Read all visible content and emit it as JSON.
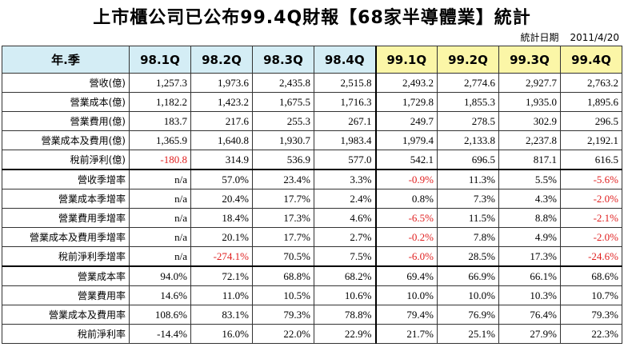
{
  "title": "上市櫃公司已公布99.4Q財報【68家半導體業】統計",
  "date_label": "統計日期",
  "date_value": "2011/4/20",
  "header": {
    "corner": "年.季",
    "quarters": [
      "98.1Q",
      "98.2Q",
      "98.3Q",
      "98.4Q",
      "99.1Q",
      "99.2Q",
      "99.3Q",
      "99.4Q"
    ]
  },
  "colors": {
    "header_98": "#d4edf5",
    "header_99": "#fbf6a7",
    "negative": "#e02020"
  },
  "rows": [
    {
      "label": "營收(億)",
      "values": [
        "1,257.3",
        "1,973.6",
        "2,435.8",
        "2,515.8",
        "2,493.2",
        "2,774.6",
        "2,927.7",
        "2,763.2"
      ],
      "neg": [
        false,
        false,
        false,
        false,
        false,
        false,
        false,
        false
      ]
    },
    {
      "label": "營業成本(億)",
      "values": [
        "1,182.2",
        "1,423.2",
        "1,675.5",
        "1,716.3",
        "1,729.8",
        "1,855.3",
        "1,935.0",
        "1,895.6"
      ],
      "neg": [
        false,
        false,
        false,
        false,
        false,
        false,
        false,
        false
      ]
    },
    {
      "label": "營業費用(億)",
      "values": [
        "183.7",
        "217.6",
        "255.3",
        "267.1",
        "249.7",
        "278.5",
        "302.9",
        "296.5"
      ],
      "neg": [
        false,
        false,
        false,
        false,
        false,
        false,
        false,
        false
      ]
    },
    {
      "label": "營業成本及費用(億)",
      "values": [
        "1,365.9",
        "1,640.8",
        "1,930.7",
        "1,983.4",
        "1,979.4",
        "2,133.8",
        "2,237.8",
        "2,192.1"
      ],
      "neg": [
        false,
        false,
        false,
        false,
        false,
        false,
        false,
        false
      ]
    },
    {
      "label": "稅前淨利(億)",
      "values": [
        "-180.8",
        "314.9",
        "536.9",
        "577.0",
        "542.1",
        "696.5",
        "817.1",
        "616.5"
      ],
      "neg": [
        true,
        false,
        false,
        false,
        false,
        false,
        false,
        false
      ]
    },
    {
      "label": "營收季增率",
      "values": [
        "n/a",
        "57.0%",
        "23.4%",
        "3.3%",
        "-0.9%",
        "11.3%",
        "5.5%",
        "-5.6%"
      ],
      "neg": [
        false,
        false,
        false,
        false,
        true,
        false,
        false,
        true
      ],
      "group_start": true
    },
    {
      "label": "營業成本季增率",
      "values": [
        "n/a",
        "20.4%",
        "17.7%",
        "2.4%",
        "0.8%",
        "7.3%",
        "4.3%",
        "-2.0%"
      ],
      "neg": [
        false,
        false,
        false,
        false,
        false,
        false,
        false,
        true
      ]
    },
    {
      "label": "營業費用季增率",
      "values": [
        "n/a",
        "18.4%",
        "17.3%",
        "4.6%",
        "-6.5%",
        "11.5%",
        "8.8%",
        "-2.1%"
      ],
      "neg": [
        false,
        false,
        false,
        false,
        true,
        false,
        false,
        true
      ]
    },
    {
      "label": "營業成本及費用季增率",
      "values": [
        "n/a",
        "20.1%",
        "17.7%",
        "2.7%",
        "-0.2%",
        "7.8%",
        "4.9%",
        "-2.0%"
      ],
      "neg": [
        false,
        false,
        false,
        false,
        true,
        false,
        false,
        true
      ]
    },
    {
      "label": "稅前淨利季增率",
      "values": [
        "n/a",
        "-274.1%",
        "70.5%",
        "7.5%",
        "-6.0%",
        "28.5%",
        "17.3%",
        "-24.6%"
      ],
      "neg": [
        false,
        true,
        false,
        false,
        true,
        false,
        false,
        true
      ]
    },
    {
      "label": "營業成本率",
      "values": [
        "94.0%",
        "72.1%",
        "68.8%",
        "68.2%",
        "69.4%",
        "66.9%",
        "66.1%",
        "68.6%"
      ],
      "neg": [
        false,
        false,
        false,
        false,
        false,
        false,
        false,
        false
      ],
      "group_start": true
    },
    {
      "label": "營業費用率",
      "values": [
        "14.6%",
        "11.0%",
        "10.5%",
        "10.6%",
        "10.0%",
        "10.0%",
        "10.3%",
        "10.7%"
      ],
      "neg": [
        false,
        false,
        false,
        false,
        false,
        false,
        false,
        false
      ]
    },
    {
      "label": "營業成本及費用率",
      "values": [
        "108.6%",
        "83.1%",
        "79.3%",
        "78.8%",
        "79.4%",
        "76.9%",
        "76.4%",
        "79.3%"
      ],
      "neg": [
        false,
        false,
        false,
        false,
        false,
        false,
        false,
        false
      ]
    },
    {
      "label": "稅前淨利率",
      "values": [
        "-14.4%",
        "16.0%",
        "22.0%",
        "22.9%",
        "21.7%",
        "25.1%",
        "27.9%",
        "22.3%"
      ],
      "neg": [
        false,
        false,
        false,
        false,
        false,
        false,
        false,
        false
      ]
    }
  ]
}
